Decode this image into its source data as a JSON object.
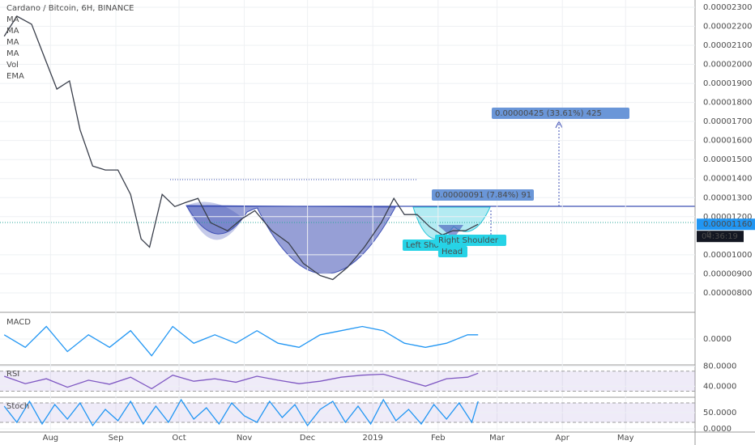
{
  "chart_data": [
    {
      "type": "line",
      "title": "Cardano / Bitcoin, 6H, BINANCE",
      "indicators": [
        "MA",
        "MA",
        "MA",
        "MA",
        "Vol",
        "EMA"
      ],
      "xlim": [
        0,
        330
      ],
      "xticks": [
        {
          "value": 24,
          "label": "Aug"
        },
        {
          "value": 55,
          "label": "Sep"
        },
        {
          "value": 85,
          "label": "Oct"
        },
        {
          "value": 116,
          "label": "Nov"
        },
        {
          "value": 146,
          "label": "Dec"
        },
        {
          "value": 177,
          "label": "2019"
        },
        {
          "value": 208,
          "label": "Feb"
        },
        {
          "value": 236,
          "label": "Mar"
        },
        {
          "value": 267,
          "label": "Apr"
        },
        {
          "value": 297,
          "label": "May"
        }
      ],
      "ylim": [
        7.02e-06,
        2.338e-05
      ],
      "yticks": [
        {
          "value": 8e-06,
          "label": "0.00000800"
        },
        {
          "value": 9e-06,
          "label": "0.00000900"
        },
        {
          "value": 1e-05,
          "label": "0.00001000"
        },
        {
          "value": 1.2e-05,
          "label": "0.00001200"
        },
        {
          "value": 1.3e-05,
          "label": "0.00001300"
        },
        {
          "value": 1.4e-05,
          "label": "0.00001400"
        },
        {
          "value": 1.5e-05,
          "label": "0.00001500"
        },
        {
          "value": 1.6e-05,
          "label": "0.00001600"
        },
        {
          "value": 1.7e-05,
          "label": "0.00001700"
        },
        {
          "value": 1.8e-05,
          "label": "0.00001800"
        },
        {
          "value": 1.9e-05,
          "label": "0.00001900"
        },
        {
          "value": 2e-05,
          "label": "0.00002000"
        },
        {
          "value": 2.1e-05,
          "label": "0.00002100"
        },
        {
          "value": 2.2e-05,
          "label": "0.00002200"
        },
        {
          "value": 2.3e-05,
          "label": "0.00002300"
        }
      ],
      "series": [
        {
          "name": "Close",
          "color": "#3a3f4b",
          "x": [
            2,
            8,
            15,
            21,
            27,
            33,
            38,
            44,
            50,
            56,
            62,
            67,
            71,
            77,
            83,
            88,
            94,
            100,
            108,
            115,
            121,
            129,
            137,
            144,
            152,
            158,
            165,
            173,
            181,
            187,
            192,
            198,
            204,
            210,
            215,
            221,
            227
          ],
          "values": [
            2.147e-05,
            2.253e-05,
            2.211e-05,
            2.04e-05,
            1.87e-05,
            1.913e-05,
            1.657e-05,
            1.466e-05,
            1.445e-05,
            1.445e-05,
            1.317e-05,
            1.083e-05,
            1.04e-05,
            1.317e-05,
            1.253e-05,
            1.274e-05,
            1.296e-05,
            1.168e-05,
            1.126e-05,
            1.19e-05,
            1.232e-05,
            1.126e-05,
            1.062e-05,
            9.55e-06,
            8.91e-06,
            8.7e-06,
            9.34e-06,
            1.04e-05,
            1.168e-05,
            1.296e-05,
            1.211e-05,
            1.211e-05,
            1.147e-05,
            1.104e-05,
            1.126e-05,
            1.126e-05,
            1.16e-05
          ]
        }
      ],
      "last_price": {
        "value": 1.16e-05,
        "label": "0.00001160"
      },
      "countdown": "04:36:19",
      "partial_tick": "0",
      "annotations": [
        "0.00000425 (33.61%) 425",
        "0.00000091 (7.84%) 91",
        "Left Shoulder",
        "Right Shoulder",
        "Head"
      ]
    },
    {
      "type": "line",
      "title": "MACD",
      "ylim": [
        -6e-07,
        6e-07
      ],
      "yticks": [
        {
          "value": 0,
          "label": "0.0000"
        }
      ],
      "series": [
        {
          "name": "MACD",
          "color": "#2196f3",
          "x": [
            2,
            12,
            22,
            32,
            42,
            52,
            62,
            72,
            82,
            92,
            102,
            112,
            122,
            132,
            142,
            152,
            162,
            172,
            182,
            192,
            202,
            212,
            222,
            227
          ],
          "values": [
            1e-07,
            -2e-07,
            3e-07,
            -3e-07,
            1e-07,
            -2e-07,
            2e-07,
            -4e-07,
            3e-07,
            -1e-07,
            1e-07,
            -1e-07,
            2e-07,
            -1e-07,
            -2e-07,
            1e-07,
            2e-07,
            3e-07,
            2e-07,
            -1e-07,
            -2e-07,
            -1e-07,
            1e-07,
            1e-07
          ]
        }
      ]
    },
    {
      "type": "line",
      "title": "RSI",
      "ylim": [
        19.5,
        81
      ],
      "band": [
        30,
        70
      ],
      "yticks": [
        {
          "value": 80,
          "label": "80.0000"
        },
        {
          "value": 40,
          "label": "40.0000"
        }
      ],
      "series": [
        {
          "name": "RSI",
          "color": "#7e57c2",
          "x": [
            2,
            12,
            22,
            32,
            42,
            52,
            62,
            72,
            82,
            92,
            102,
            112,
            122,
            132,
            142,
            152,
            162,
            172,
            182,
            192,
            202,
            212,
            222,
            227
          ],
          "values": [
            60,
            45,
            55,
            38,
            52,
            44,
            58,
            35,
            62,
            50,
            55,
            48,
            60,
            52,
            45,
            50,
            58,
            62,
            64,
            52,
            40,
            55,
            58,
            66
          ]
        }
      ]
    },
    {
      "type": "line",
      "title": "Stoch",
      "ylim": [
        -7.5,
        95
      ],
      "band": [
        20,
        80
      ],
      "yticks": [
        {
          "value": 50,
          "label": "50.0000"
        },
        {
          "value": 0,
          "label": "0.0000"
        }
      ],
      "series": [
        {
          "name": "Stoch",
          "color": "#2196f3",
          "x": [
            2,
            8,
            14,
            20,
            26,
            32,
            38,
            44,
            50,
            56,
            62,
            68,
            74,
            80,
            86,
            92,
            98,
            104,
            110,
            116,
            122,
            128,
            134,
            140,
            146,
            152,
            158,
            164,
            170,
            176,
            182,
            188,
            194,
            200,
            206,
            212,
            218,
            224,
            227
          ],
          "values": [
            70,
            20,
            85,
            15,
            75,
            30,
            80,
            10,
            60,
            25,
            85,
            15,
            70,
            20,
            90,
            30,
            65,
            15,
            80,
            40,
            20,
            85,
            35,
            75,
            10,
            60,
            85,
            20,
            70,
            15,
            90,
            25,
            60,
            15,
            75,
            30,
            80,
            20,
            85
          ]
        }
      ]
    }
  ]
}
